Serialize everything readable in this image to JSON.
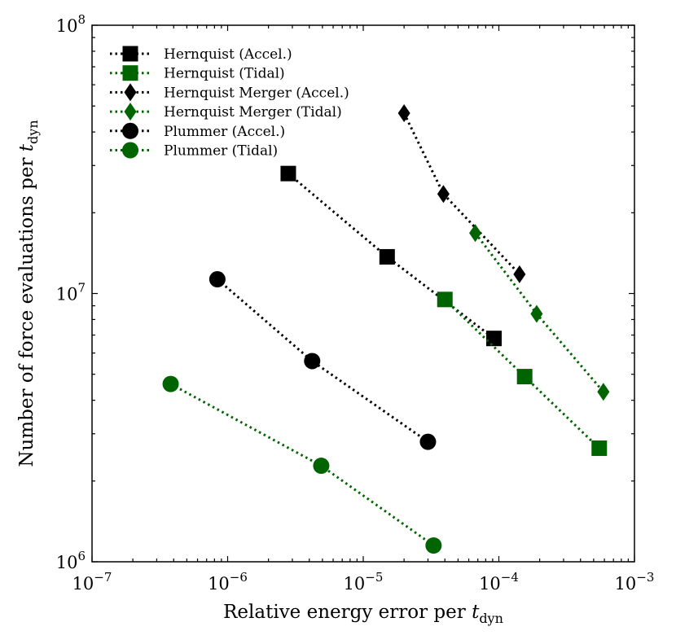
{
  "chart_data": {
    "type": "scatter",
    "title": "",
    "xlabel": "Relative energy error per ",
    "xlabel_sub": "t",
    "xlabel_subscript": "dyn",
    "ylabel": "Number of force evaluations per ",
    "ylabel_sub": "t",
    "ylabel_subscript": "dyn",
    "xscale": "log",
    "yscale": "log",
    "xlim": [
      1e-07,
      0.001
    ],
    "ylim": [
      1000000.0,
      100000000.0
    ],
    "xticks": [
      {
        "value": 1e-07,
        "base": "10",
        "exp": "−7"
      },
      {
        "value": 1e-06,
        "base": "10",
        "exp": "−6"
      },
      {
        "value": 1e-05,
        "base": "10",
        "exp": "−5"
      },
      {
        "value": 0.0001,
        "base": "10",
        "exp": "−4"
      },
      {
        "value": 0.001,
        "base": "10",
        "exp": "−3"
      }
    ],
    "yticks": [
      {
        "value": 1000000.0,
        "base": "10",
        "exp": "6"
      },
      {
        "value": 10000000.0,
        "base": "10",
        "exp": "7"
      },
      {
        "value": 100000000.0,
        "base": "10",
        "exp": "8"
      }
    ],
    "legend_position": "top-left",
    "series": [
      {
        "name": "Hernquist (Accel.)",
        "marker": "square",
        "color": "#000000",
        "x": [
          2.8e-06,
          1.5e-05,
          9.2e-05
        ],
        "y": [
          28000000.0,
          13700000.0,
          6800000.0
        ]
      },
      {
        "name": "Hernquist (Tidal)",
        "marker": "square",
        "color": "#006400",
        "x": [
          4e-05,
          0.000155,
          0.00055
        ],
        "y": [
          9500000.0,
          4900000.0,
          2650000.0
        ]
      },
      {
        "name": "Hernquist Merger (Accel.)",
        "marker": "diamond",
        "color": "#000000",
        "x": [
          2e-05,
          3.9e-05,
          0.000142
        ],
        "y": [
          47000000.0,
          23500000.0,
          11800000.0
        ]
      },
      {
        "name": "Hernquist Merger (Tidal)",
        "marker": "diamond",
        "color": "#006400",
        "x": [
          6.7e-05,
          0.00019,
          0.00059
        ],
        "y": [
          16800000.0,
          8400000.0,
          4300000.0
        ]
      },
      {
        "name": "Plummer (Accel.)",
        "marker": "circle",
        "color": "#000000",
        "x": [
          8.4e-07,
          4.2e-06,
          3e-05
        ],
        "y": [
          11300000.0,
          5600000.0,
          2800000.0
        ]
      },
      {
        "name": "Plummer (Tidal)",
        "marker": "circle",
        "color": "#006400",
        "x": [
          3.8e-07,
          4.9e-06,
          3.3e-05
        ],
        "y": [
          4600000.0,
          2280000.0,
          1150000.0
        ]
      }
    ]
  }
}
